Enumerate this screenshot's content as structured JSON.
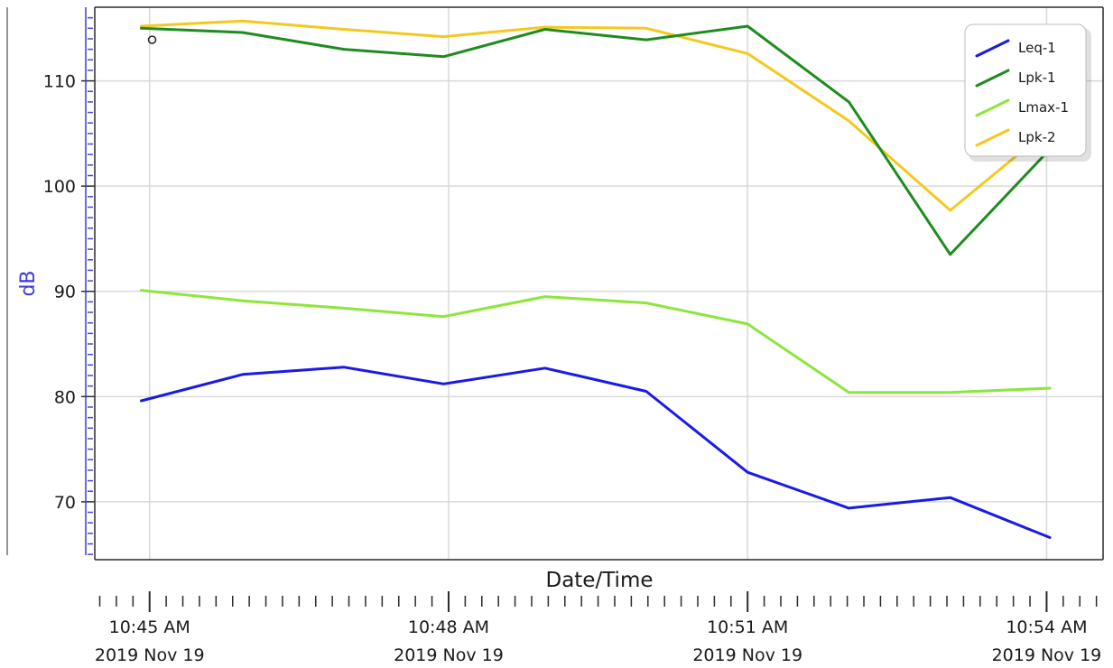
{
  "chart_data": {
    "type": "line",
    "title": "",
    "xlabel": "Date/Time",
    "ylabel": "dB",
    "xlim": [
      "2019-11-19 10:44:27",
      "2019-11-19 10:54:34"
    ],
    "ylim": [
      64.5,
      117
    ],
    "y_ticks": [
      70,
      80,
      90,
      100,
      110
    ],
    "x_ticks": [
      {
        "time": "10:45 AM",
        "date": "2019 Nov 19"
      },
      {
        "time": "10:48 AM",
        "date": "2019 Nov 19"
      },
      {
        "time": "10:51 AM",
        "date": "2019 Nov 19"
      },
      {
        "time": "10:54 AM",
        "date": "2019 Nov 19"
      }
    ],
    "grid": true,
    "legend_position": "top-right",
    "x": [
      "10:44:55",
      "10:45:56",
      "10:46:57",
      "10:47:57",
      "10:48:58",
      "10:49:59",
      "10:51:00",
      "10:52:01",
      "10:53:02",
      "10:54:02"
    ],
    "series": [
      {
        "name": "Leq-1",
        "color": "#1a1ae6",
        "values": [
          79.6,
          82.1,
          82.8,
          81.2,
          82.7,
          80.5,
          72.8,
          69.4,
          70.4,
          66.6
        ]
      },
      {
        "name": "Lpk-1",
        "color": "#1e8c1e",
        "values": [
          115.0,
          114.6,
          113.0,
          112.3,
          114.9,
          113.9,
          115.2,
          108.0,
          93.5,
          103.5
        ]
      },
      {
        "name": "Lmax-1",
        "color": "#8de63c",
        "values": [
          90.1,
          89.1,
          88.4,
          87.6,
          89.5,
          88.9,
          86.9,
          80.4,
          80.4,
          80.8
        ]
      },
      {
        "name": "Lpk-2",
        "color": "#f5c81e",
        "values": [
          115.2,
          115.7,
          114.9,
          114.2,
          115.1,
          115.0,
          112.6,
          106.2,
          97.7,
          105.5
        ]
      }
    ],
    "marker": {
      "x": "10:44:55",
      "y": 113.9
    }
  }
}
